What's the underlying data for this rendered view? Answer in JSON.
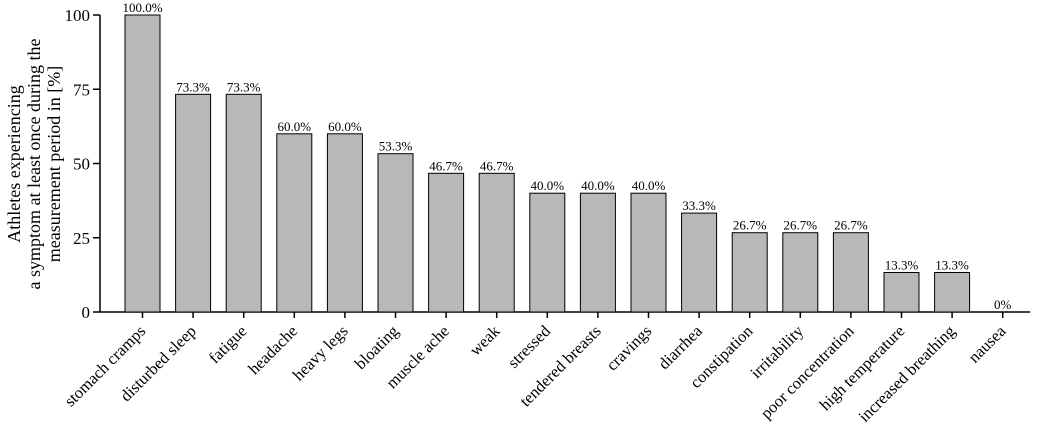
{
  "chart_data": {
    "type": "bar",
    "title": "",
    "xlabel": "",
    "ylabel_lines": [
      "Athletes experiencing",
      "a symptom at least once during the",
      "measurement period in [%]"
    ],
    "ylim": [
      0,
      100
    ],
    "yticks": [
      "0",
      "25",
      "50",
      "75",
      "100"
    ],
    "categories": [
      "stomach cramps",
      "disturbed sleep",
      "fatigue",
      "headache",
      "heavy legs",
      "bloating",
      "muscle ache",
      "weak",
      "stressed",
      "tendered breasts",
      "cravings",
      "diarrhea",
      "constipation",
      "irritability",
      "poor concentration",
      "high temperature",
      "increased breathing",
      "nausea"
    ],
    "values": [
      100,
      73.3,
      73.3,
      60,
      60,
      53.3,
      46.7,
      46.7,
      40,
      40,
      40,
      33.3,
      26.7,
      26.7,
      26.7,
      13.3,
      13.3,
      0
    ],
    "data_labels": [
      "100.0%",
      "73.3%",
      "73.3%",
      "60.0%",
      "60.0%",
      "53.3%",
      "46.7%",
      "46.7%",
      "40.0%",
      "40.0%",
      "40.0%",
      "33.3%",
      "26.7%",
      "26.7%",
      "26.7%",
      "13.3%",
      "13.3%",
      "0%"
    ],
    "grid": false,
    "colors": {
      "bar_fill": "#b8b8b8",
      "bar_stroke": "#000000",
      "axis": "#000000"
    }
  }
}
